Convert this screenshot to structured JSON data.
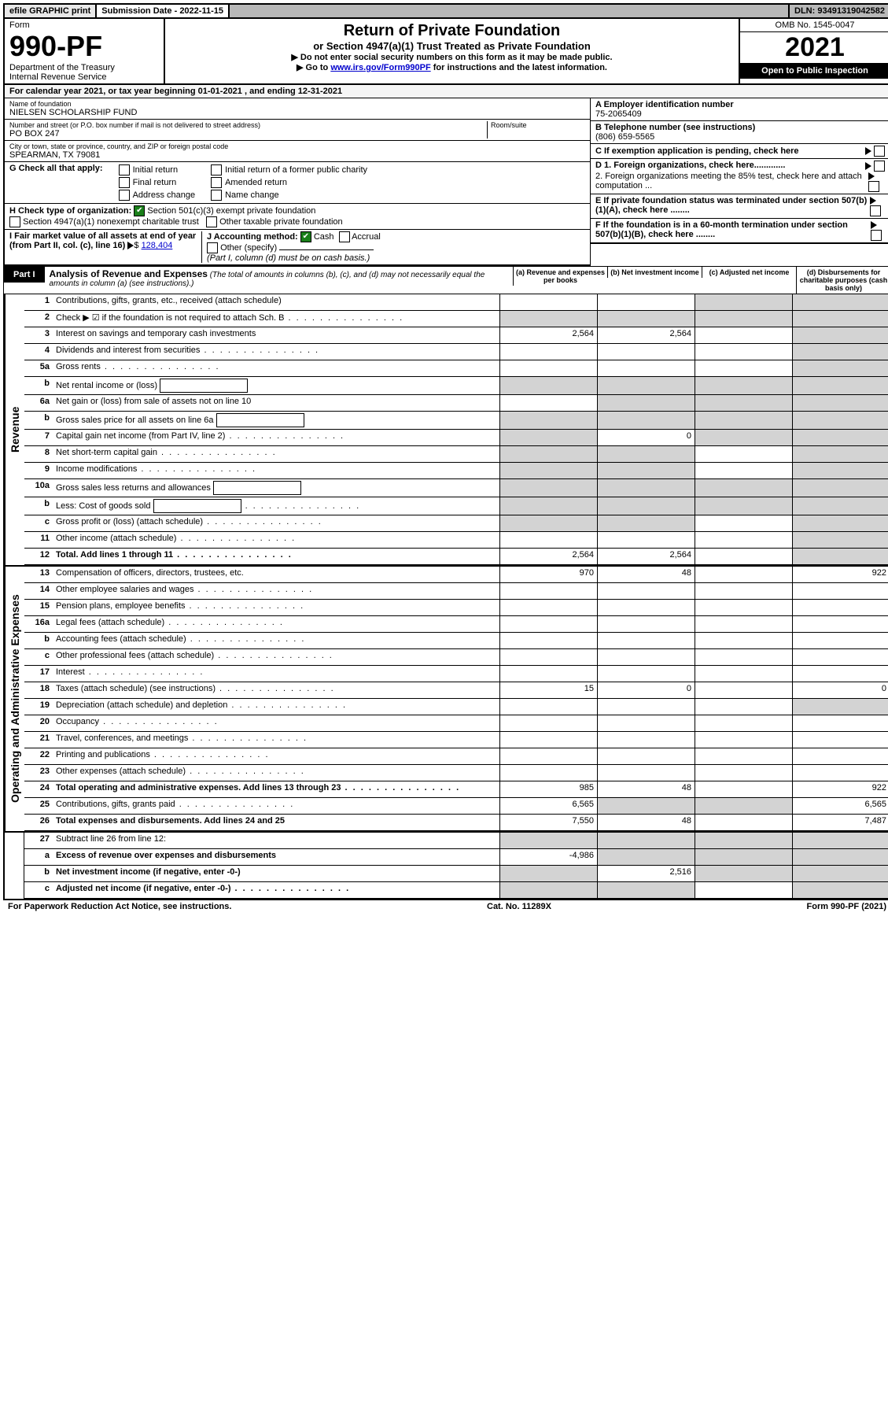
{
  "top_bar": {
    "efile": "efile GRAPHIC print",
    "submission_label": "Submission Date - 2022-11-15",
    "dln": "DLN: 93491319042582"
  },
  "header": {
    "form_label": "Form",
    "form_number": "990-PF",
    "dept": "Department of the Treasury",
    "irs": "Internal Revenue Service",
    "title": "Return of Private Foundation",
    "subtitle": "or Section 4947(a)(1) Trust Treated as Private Foundation",
    "bullet1": "▶ Do not enter social security numbers on this form as it may be made public.",
    "bullet2_pre": "▶ Go to ",
    "bullet2_link": "www.irs.gov/Form990PF",
    "bullet2_post": " for instructions and the latest information.",
    "omb": "OMB No. 1545-0047",
    "year": "2021",
    "open": "Open to Public Inspection"
  },
  "calendar_line": "For calendar year 2021, or tax year beginning 01-01-2021            , and ending 12-31-2021",
  "entity": {
    "name_label": "Name of foundation",
    "name": "NIELSEN SCHOLARSHIP FUND",
    "addr_label": "Number and street (or P.O. box number if mail is not delivered to street address)",
    "addr": "PO BOX 247",
    "room_label": "Room/suite",
    "city_label": "City or town, state or province, country, and ZIP or foreign postal code",
    "city": "SPEARMAN, TX  79081",
    "ein_label": "A Employer identification number",
    "ein": "75-2065409",
    "tel_label": "B Telephone number (see instructions)",
    "tel": "(806) 659-5565",
    "c_label": "C If exemption application is pending, check here",
    "d1": "D 1. Foreign organizations, check here.............",
    "d2": "2. Foreign organizations meeting the 85% test, check here and attach computation ...",
    "e_label": "E  If private foundation status was terminated under section 507(b)(1)(A), check here ........",
    "f_label": "F  If the foundation is in a 60-month termination under section 507(b)(1)(B), check here ........"
  },
  "g": {
    "label": "G Check all that apply:",
    "initial": "Initial return",
    "final": "Final return",
    "address": "Address change",
    "initial_former": "Initial return of a former public charity",
    "amended": "Amended return",
    "name_change": "Name change"
  },
  "h": {
    "label": "H Check type of organization:",
    "opt1": "Section 501(c)(3) exempt private foundation",
    "opt2": "Section 4947(a)(1) nonexempt charitable trust",
    "opt3": "Other taxable private foundation"
  },
  "i": {
    "label": "I Fair market value of all assets at end of year (from Part II, col. (c), line 16)",
    "value": "128,404"
  },
  "j": {
    "label": "J Accounting method:",
    "cash": "Cash",
    "accrual": "Accrual",
    "other": "Other (specify)",
    "note": "(Part I, column (d) must be on cash basis.)"
  },
  "part1": {
    "tag": "Part I",
    "title": "Analysis of Revenue and Expenses",
    "note": "(The total of amounts in columns (b), (c), and (d) may not necessarily equal the amounts in column (a) (see instructions).)",
    "col_a": "(a) Revenue and expenses per books",
    "col_b": "(b) Net investment income",
    "col_c": "(c) Adjusted net income",
    "col_d": "(d) Disbursements for charitable purposes (cash basis only)"
  },
  "sections": {
    "revenue": "Revenue",
    "expenses": "Operating and Administrative Expenses"
  },
  "rows": [
    {
      "n": "1",
      "label": "Contributions, gifts, grants, etc., received (attach schedule)",
      "a": "",
      "b": "",
      "c": "grey",
      "d": "grey"
    },
    {
      "n": "2",
      "label": "Check ▶ ☑ if the foundation is not required to attach Sch. B",
      "a": "grey",
      "b": "grey",
      "c": "grey",
      "d": "grey",
      "dots": true
    },
    {
      "n": "3",
      "label": "Interest on savings and temporary cash investments",
      "a": "2,564",
      "b": "2,564",
      "c": "",
      "d": "grey"
    },
    {
      "n": "4",
      "label": "Dividends and interest from securities",
      "a": "",
      "b": "",
      "c": "",
      "d": "grey",
      "dots": true
    },
    {
      "n": "5a",
      "label": "Gross rents",
      "a": "",
      "b": "",
      "c": "",
      "d": "grey",
      "dots": true
    },
    {
      "n": "b",
      "label": "Net rental income or (loss)",
      "a": "grey",
      "b": "grey",
      "c": "grey",
      "d": "grey",
      "box": true
    },
    {
      "n": "6a",
      "label": "Net gain or (loss) from sale of assets not on line 10",
      "a": "",
      "b": "grey",
      "c": "grey",
      "d": "grey"
    },
    {
      "n": "b",
      "label": "Gross sales price for all assets on line 6a",
      "a": "grey",
      "b": "grey",
      "c": "grey",
      "d": "grey",
      "box": true
    },
    {
      "n": "7",
      "label": "Capital gain net income (from Part IV, line 2)",
      "a": "grey",
      "b": "0",
      "c": "grey",
      "d": "grey",
      "dots": true
    },
    {
      "n": "8",
      "label": "Net short-term capital gain",
      "a": "grey",
      "b": "grey",
      "c": "",
      "d": "grey",
      "dots": true
    },
    {
      "n": "9",
      "label": "Income modifications",
      "a": "grey",
      "b": "grey",
      "c": "",
      "d": "grey",
      "dots": true
    },
    {
      "n": "10a",
      "label": "Gross sales less returns and allowances",
      "a": "grey",
      "b": "grey",
      "c": "grey",
      "d": "grey",
      "box": true
    },
    {
      "n": "b",
      "label": "Less: Cost of goods sold",
      "a": "grey",
      "b": "grey",
      "c": "grey",
      "d": "grey",
      "box": true,
      "dots": true
    },
    {
      "n": "c",
      "label": "Gross profit or (loss) (attach schedule)",
      "a": "grey",
      "b": "grey",
      "c": "",
      "d": "grey",
      "dots": true
    },
    {
      "n": "11",
      "label": "Other income (attach schedule)",
      "a": "",
      "b": "",
      "c": "",
      "d": "grey",
      "dots": true
    },
    {
      "n": "12",
      "label": "Total. Add lines 1 through 11",
      "a": "2,564",
      "b": "2,564",
      "c": "",
      "d": "grey",
      "bold": true,
      "dots": true
    }
  ],
  "exp_rows": [
    {
      "n": "13",
      "label": "Compensation of officers, directors, trustees, etc.",
      "a": "970",
      "b": "48",
      "c": "",
      "d": "922"
    },
    {
      "n": "14",
      "label": "Other employee salaries and wages",
      "a": "",
      "b": "",
      "c": "",
      "d": "",
      "dots": true
    },
    {
      "n": "15",
      "label": "Pension plans, employee benefits",
      "a": "",
      "b": "",
      "c": "",
      "d": "",
      "dots": true
    },
    {
      "n": "16a",
      "label": "Legal fees (attach schedule)",
      "a": "",
      "b": "",
      "c": "",
      "d": "",
      "dots": true
    },
    {
      "n": "b",
      "label": "Accounting fees (attach schedule)",
      "a": "",
      "b": "",
      "c": "",
      "d": "",
      "dots": true
    },
    {
      "n": "c",
      "label": "Other professional fees (attach schedule)",
      "a": "",
      "b": "",
      "c": "",
      "d": "",
      "dots": true
    },
    {
      "n": "17",
      "label": "Interest",
      "a": "",
      "b": "",
      "c": "",
      "d": "",
      "dots": true
    },
    {
      "n": "18",
      "label": "Taxes (attach schedule) (see instructions)",
      "a": "15",
      "b": "0",
      "c": "",
      "d": "0",
      "dots": true
    },
    {
      "n": "19",
      "label": "Depreciation (attach schedule) and depletion",
      "a": "",
      "b": "",
      "c": "",
      "d": "grey",
      "dots": true
    },
    {
      "n": "20",
      "label": "Occupancy",
      "a": "",
      "b": "",
      "c": "",
      "d": "",
      "dots": true
    },
    {
      "n": "21",
      "label": "Travel, conferences, and meetings",
      "a": "",
      "b": "",
      "c": "",
      "d": "",
      "dots": true
    },
    {
      "n": "22",
      "label": "Printing and publications",
      "a": "",
      "b": "",
      "c": "",
      "d": "",
      "dots": true
    },
    {
      "n": "23",
      "label": "Other expenses (attach schedule)",
      "a": "",
      "b": "",
      "c": "",
      "d": "",
      "dots": true
    },
    {
      "n": "24",
      "label": "Total operating and administrative expenses. Add lines 13 through 23",
      "a": "985",
      "b": "48",
      "c": "",
      "d": "922",
      "bold": true,
      "dots": true
    },
    {
      "n": "25",
      "label": "Contributions, gifts, grants paid",
      "a": "6,565",
      "b": "grey",
      "c": "grey",
      "d": "6,565",
      "dots": true
    },
    {
      "n": "26",
      "label": "Total expenses and disbursements. Add lines 24 and 25",
      "a": "7,550",
      "b": "48",
      "c": "",
      "d": "7,487",
      "bold": true
    }
  ],
  "bottom_rows": [
    {
      "n": "27",
      "label": "Subtract line 26 from line 12:",
      "a": "grey",
      "b": "grey",
      "c": "grey",
      "d": "grey"
    },
    {
      "n": "a",
      "label": "Excess of revenue over expenses and disbursements",
      "a": "-4,986",
      "b": "grey",
      "c": "grey",
      "d": "grey",
      "bold": true
    },
    {
      "n": "b",
      "label": "Net investment income (if negative, enter -0-)",
      "a": "grey",
      "b": "2,516",
      "c": "grey",
      "d": "grey",
      "bold": true
    },
    {
      "n": "c",
      "label": "Adjusted net income (if negative, enter -0-)",
      "a": "grey",
      "b": "grey",
      "c": "",
      "d": "grey",
      "bold": true,
      "dots": true
    }
  ],
  "footer": {
    "left": "For Paperwork Reduction Act Notice, see instructions.",
    "center": "Cat. No. 11289X",
    "right": "Form 990-PF (2021)"
  }
}
